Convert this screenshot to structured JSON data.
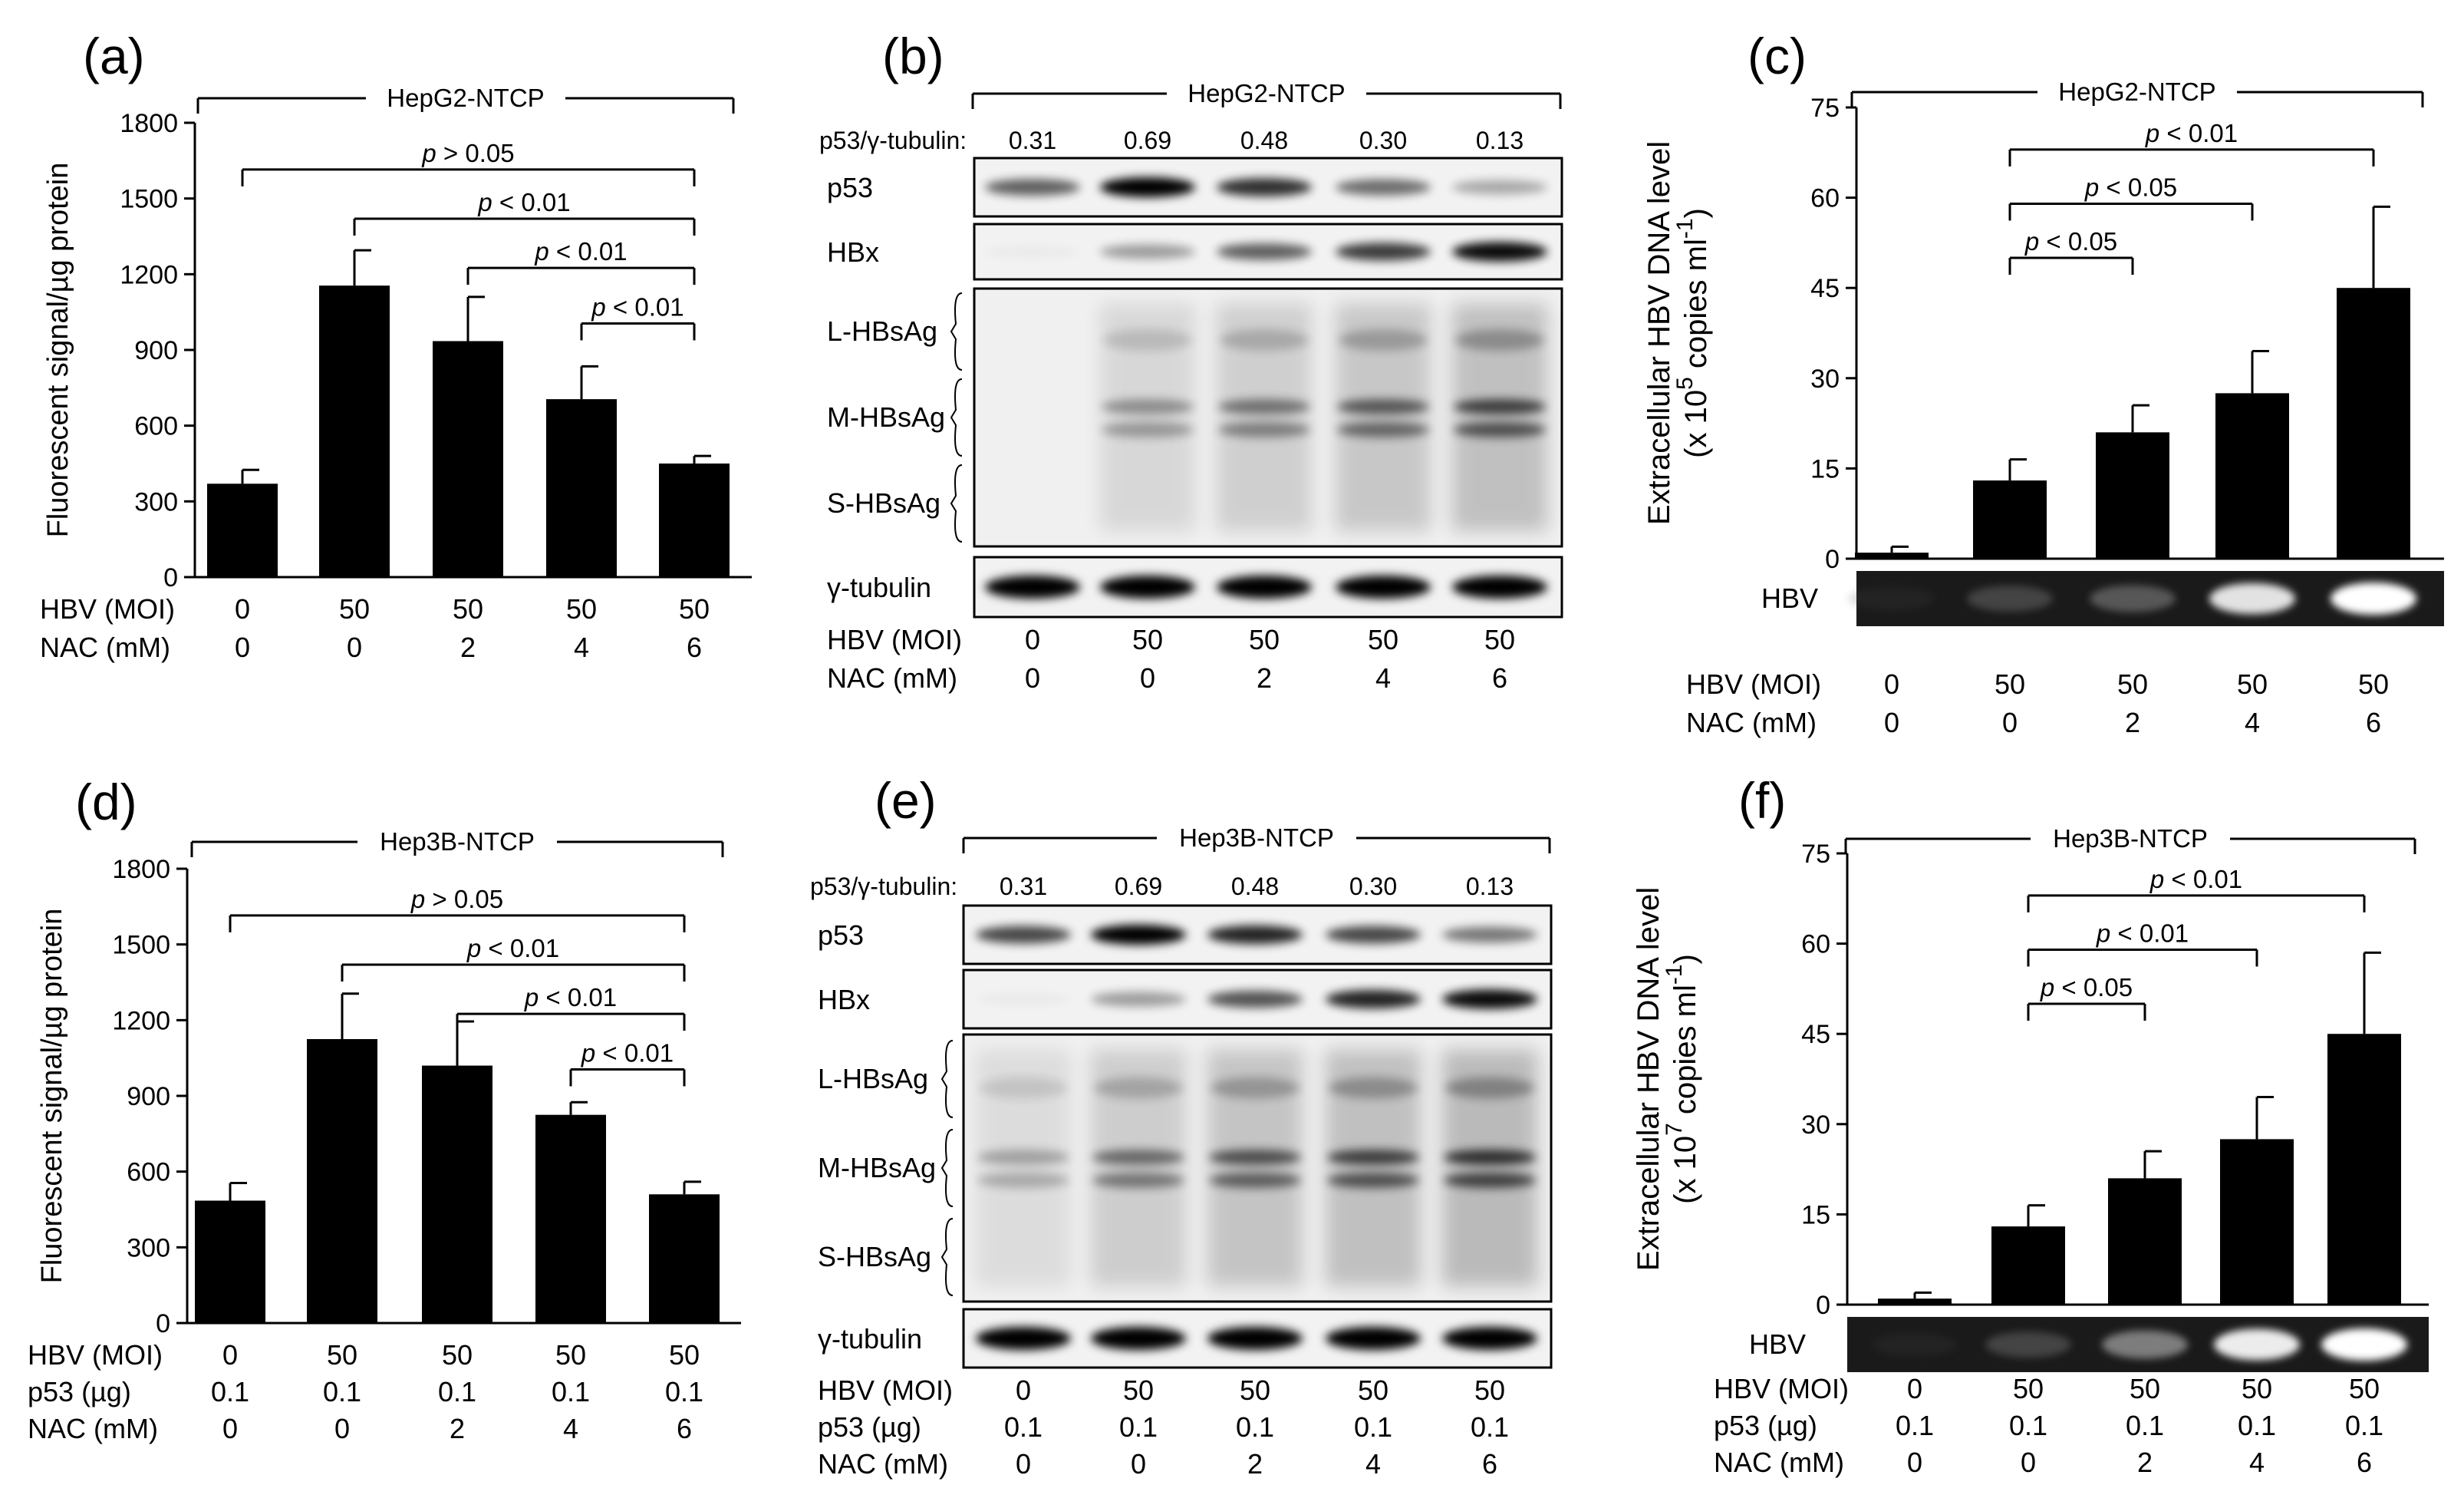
{
  "chart_data": [
    {
      "panel": "(a)",
      "type": "bar",
      "group_label": "HepG2-NTCP",
      "ylabel": "Fluorescent signal/µg protein",
      "ylim": [
        0,
        1800
      ],
      "yticks": [
        "0",
        "300",
        "600",
        "900",
        "1200",
        "1500",
        "1800"
      ],
      "values": [
        370,
        1155,
        935,
        705,
        450
      ],
      "errors": [
        55,
        140,
        175,
        130,
        30
      ],
      "rows": [
        {
          "label": "HBV (MOI)",
          "values": [
            "0",
            "50",
            "50",
            "50",
            "50"
          ]
        },
        {
          "label": "NAC (mM)",
          "values": [
            "0",
            "0",
            "2",
            "4",
            "6"
          ]
        }
      ],
      "brackets": [
        {
          "from": 0,
          "to": 4,
          "y": 1615,
          "label": "p > 0.05"
        },
        {
          "from": 1,
          "to": 4,
          "y": 1420,
          "label": "p < 0.01"
        },
        {
          "from": 2,
          "to": 4,
          "y": 1225,
          "label": "p < 0.01"
        },
        {
          "from": 3,
          "to": 4,
          "y": 1005,
          "label": "p < 0.01"
        }
      ]
    },
    {
      "panel": "(c)",
      "type": "bar",
      "group_label": "HepG2-NTCP",
      "ylabel_line1": "Extracellular HBV DNA level",
      "ylabel_line2_pre": "(x 10",
      "ylabel_line2_sup": "5",
      "ylabel_line2_mid": " copies ml",
      "ylabel_line2_sup2": "-1",
      "ylabel_line2_post": ")",
      "ylim": [
        0,
        75
      ],
      "yticks": [
        "0",
        "15",
        "30",
        "45",
        "60",
        "75"
      ],
      "values": [
        1,
        13,
        21,
        27.5,
        45
      ],
      "errors": [
        1,
        3.5,
        4.5,
        7,
        13.5
      ],
      "gel_label": "HBV",
      "gel_intensity": [
        0.05,
        0.3,
        0.4,
        0.85,
        1.0
      ],
      "rows": [
        {
          "label": "HBV (MOI)",
          "values": [
            "0",
            "50",
            "50",
            "50",
            "50"
          ]
        },
        {
          "label": "NAC (mM)",
          "values": [
            "0",
            "0",
            "2",
            "4",
            "6"
          ]
        }
      ],
      "brackets": [
        {
          "from": 1,
          "to": 2,
          "y": 50,
          "label": "p < 0.05"
        },
        {
          "from": 1,
          "to": 3,
          "y": 59,
          "label": "p < 0.05"
        },
        {
          "from": 1,
          "to": 4,
          "y": 68,
          "label": "p < 0.01"
        }
      ]
    },
    {
      "panel": "(d)",
      "type": "bar",
      "group_label": "Hep3B-NTCP",
      "ylabel": "Fluorescent signal/µg protein",
      "ylim": [
        0,
        1800
      ],
      "yticks": [
        "0",
        "300",
        "600",
        "900",
        "1200",
        "1500",
        "1800"
      ],
      "values": [
        485,
        1125,
        1020,
        825,
        510
      ],
      "errors": [
        70,
        180,
        175,
        50,
        50
      ],
      "rows": [
        {
          "label": "HBV (MOI)",
          "values": [
            "0",
            "50",
            "50",
            "50",
            "50"
          ]
        },
        {
          "label": "p53 (µg)",
          "values": [
            "0.1",
            "0.1",
            "0.1",
            "0.1",
            "0.1"
          ]
        },
        {
          "label": "NAC (mM)",
          "values": [
            "0",
            "0",
            "2",
            "4",
            "6"
          ]
        }
      ],
      "brackets": [
        {
          "from": 0,
          "to": 4,
          "y": 1615,
          "label": "p > 0.05"
        },
        {
          "from": 1,
          "to": 4,
          "y": 1420,
          "label": "p < 0.01"
        },
        {
          "from": 2,
          "to": 4,
          "y": 1225,
          "label": "p < 0.01"
        },
        {
          "from": 3,
          "to": 4,
          "y": 1005,
          "label": "p < 0.01"
        }
      ]
    },
    {
      "panel": "(f)",
      "type": "bar",
      "group_label": "Hep3B-NTCP",
      "ylabel_line1": "Extracellular HBV DNA level",
      "ylabel_line2_pre": "(x 10",
      "ylabel_line2_sup": "7",
      "ylabel_line2_mid": " copies ml",
      "ylabel_line2_sup2": "-1",
      "ylabel_line2_post": ")",
      "ylim": [
        0,
        75
      ],
      "yticks": [
        "0",
        "15",
        "30",
        "45",
        "60",
        "75"
      ],
      "values": [
        1,
        13,
        21,
        27.5,
        45
      ],
      "errors": [
        1,
        3.5,
        4.5,
        7,
        13.5
      ],
      "gel_label": "HBV",
      "gel_intensity": [
        0.05,
        0.3,
        0.55,
        0.9,
        1.0
      ],
      "rows": [
        {
          "label": "HBV (MOI)",
          "values": [
            "0",
            "50",
            "50",
            "50",
            "50"
          ]
        },
        {
          "label": "p53 (µg)",
          "values": [
            "0.1",
            "0.1",
            "0.1",
            "0.1",
            "0.1"
          ]
        },
        {
          "label": "NAC (mM)",
          "values": [
            "0",
            "0",
            "2",
            "4",
            "6"
          ]
        }
      ],
      "brackets": [
        {
          "from": 1,
          "to": 2,
          "y": 50,
          "label": "p < 0.05"
        },
        {
          "from": 1,
          "to": 3,
          "y": 59,
          "label": "p < 0.01"
        },
        {
          "from": 1,
          "to": 4,
          "y": 68,
          "label": "p < 0.01"
        }
      ]
    }
  ],
  "blots": [
    {
      "panel": "(b)",
      "group_label": "HepG2-NTCP",
      "ratio_label": "p53/γ-tubulin:",
      "ratios": [
        "0.31",
        "0.69",
        "0.48",
        "0.30",
        "0.13"
      ],
      "bands": [
        {
          "label": "p53",
          "intensity": [
            0.6,
            1.0,
            0.8,
            0.55,
            0.3
          ]
        },
        {
          "label": "HBx",
          "intensity": [
            0.03,
            0.35,
            0.6,
            0.75,
            0.95
          ]
        },
        {
          "label": "γ-tubulin",
          "intensity": [
            1,
            1,
            1,
            1,
            1
          ]
        }
      ],
      "hbsag_labels": [
        "L-HBsAg",
        "M-HBsAg",
        "S-HBsAg"
      ],
      "hbsag_intensity": [
        0.0,
        0.45,
        0.6,
        0.75,
        0.9
      ],
      "rows": [
        {
          "label": "HBV (MOI)",
          "values": [
            "0",
            "50",
            "50",
            "50",
            "50"
          ]
        },
        {
          "label": "NAC (mM)",
          "values": [
            "0",
            "0",
            "2",
            "4",
            "6"
          ]
        }
      ]
    },
    {
      "panel": "(e)",
      "group_label": "Hep3B-NTCP",
      "ratio_label": "p53/γ-tubulin:",
      "ratios": [
        "0.31",
        "0.69",
        "0.48",
        "0.30",
        "0.13"
      ],
      "bands": [
        {
          "label": "p53",
          "intensity": [
            0.7,
            1.0,
            0.85,
            0.7,
            0.5
          ]
        },
        {
          "label": "HBx",
          "intensity": [
            0.03,
            0.35,
            0.65,
            0.85,
            0.95
          ]
        },
        {
          "label": "γ-tubulin",
          "intensity": [
            1,
            1,
            1,
            1,
            1
          ]
        }
      ],
      "hbsag_labels": [
        "L-HBsAg",
        "M-HBsAg",
        "S-HBsAg"
      ],
      "hbsag_intensity": [
        0.35,
        0.65,
        0.8,
        0.9,
        1.0
      ],
      "rows": [
        {
          "label": "HBV (MOI)",
          "values": [
            "0",
            "50",
            "50",
            "50",
            "50"
          ]
        },
        {
          "label": "p53 (µg)",
          "values": [
            "0.1",
            "0.1",
            "0.1",
            "0.1",
            "0.1"
          ]
        },
        {
          "label": "NAC (mM)",
          "values": [
            "0",
            "0",
            "2",
            "4",
            "6"
          ]
        }
      ]
    }
  ]
}
